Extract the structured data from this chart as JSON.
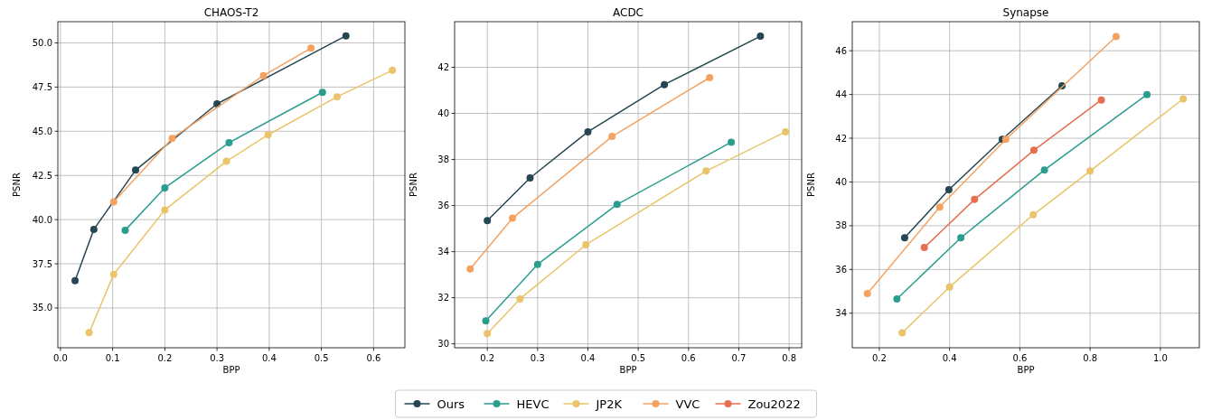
{
  "chart_data": [
    {
      "type": "line",
      "title": "CHAOS-T2",
      "xlabel": "BPP",
      "ylabel": "PSNR",
      "xlim": [
        -0.005,
        0.66
      ],
      "ylim": [
        32.75,
        51.2
      ],
      "xticks": [
        {
          "value": 0,
          "label": "0.0"
        },
        0.1,
        0.2,
        0.3,
        0.4,
        0.5,
        0.6
      ],
      "yticks": [
        {
          "value": 35,
          "label": "35.0"
        },
        37.5,
        {
          "value": 40,
          "label": "40.0"
        },
        42.5,
        {
          "value": 45,
          "label": "45.0"
        },
        47.5,
        {
          "value": 50,
          "label": "50.0"
        }
      ],
      "grid": true,
      "marker": "circle",
      "line_style": "solid",
      "legend": "bottom",
      "series": [
        {
          "name": "Ours",
          "color": "#264653",
          "x": [
            0.028,
            0.064,
            0.144,
            0.3,
            0.547
          ],
          "values": [
            36.55,
            39.45,
            42.8,
            46.55,
            50.4
          ]
        },
        {
          "name": "HEVC",
          "color": "#2a9d8f",
          "x": [
            0.124,
            0.2,
            0.323,
            0.502
          ],
          "values": [
            39.4,
            41.8,
            44.35,
            47.2
          ]
        },
        {
          "name": "JP2K",
          "color": "#e9c46a",
          "x": [
            0.055,
            0.102,
            0.2,
            0.318,
            0.398,
            0.53,
            0.636
          ],
          "values": [
            33.6,
            36.9,
            40.55,
            43.3,
            44.8,
            46.95,
            48.45
          ]
        },
        {
          "name": "VVC",
          "color": "#f4a261",
          "x": [
            0.102,
            0.214,
            0.389,
            0.48
          ],
          "values": [
            41.0,
            44.6,
            48.15,
            49.7
          ]
        }
      ]
    },
    {
      "type": "line",
      "title": "ACDC",
      "xlabel": "BPP",
      "ylabel": "PSNR",
      "xlim": [
        0.135,
        0.825
      ],
      "ylim": [
        29.83,
        43.98
      ],
      "xticks": [
        0.2,
        0.3,
        0.4,
        0.5,
        0.6,
        0.7,
        0.8
      ],
      "yticks": [
        30,
        32,
        34,
        36,
        38,
        40,
        42
      ],
      "grid": true,
      "marker": "circle",
      "line_style": "solid",
      "legend": "bottom",
      "series": [
        {
          "name": "Ours",
          "color": "#264653",
          "x": [
            0.2,
            0.285,
            0.4,
            0.552,
            0.743
          ],
          "values": [
            35.35,
            37.2,
            39.2,
            41.25,
            43.35
          ]
        },
        {
          "name": "HEVC",
          "color": "#2a9d8f",
          "x": [
            0.197,
            0.3,
            0.458,
            0.685
          ],
          "values": [
            31.0,
            33.45,
            36.05,
            38.75
          ]
        },
        {
          "name": "JP2K",
          "color": "#e9c46a",
          "x": [
            0.2,
            0.265,
            0.396,
            0.635,
            0.793
          ],
          "values": [
            30.45,
            31.95,
            34.3,
            37.5,
            39.2
          ]
        },
        {
          "name": "VVC",
          "color": "#f4a261",
          "x": [
            0.166,
            0.25,
            0.448,
            0.642
          ],
          "values": [
            33.25,
            35.45,
            39.0,
            41.55
          ]
        }
      ]
    },
    {
      "type": "line",
      "title": "Synapse",
      "xlabel": "BPP",
      "ylabel": "PSNR",
      "xlim": [
        0.123,
        1.111
      ],
      "ylim": [
        32.42,
        47.33
      ],
      "xticks": [
        0.2,
        0.4,
        0.6,
        0.8,
        {
          "value": 1,
          "label": "1.0"
        }
      ],
      "yticks": [
        34,
        36,
        38,
        40,
        42,
        44,
        46
      ],
      "grid": true,
      "marker": "circle",
      "line_style": "solid",
      "legend": "bottom",
      "series": [
        {
          "name": "Ours",
          "color": "#264653",
          "x": [
            0.272,
            0.398,
            0.55,
            0.72
          ],
          "values": [
            37.45,
            39.65,
            41.95,
            44.4
          ]
        },
        {
          "name": "HEVC",
          "color": "#2a9d8f",
          "x": [
            0.25,
            0.432,
            0.67,
            0.962
          ],
          "values": [
            34.65,
            37.45,
            40.55,
            44.0
          ]
        },
        {
          "name": "JP2K",
          "color": "#e9c46a",
          "x": [
            0.265,
            0.4,
            0.638,
            0.8,
            1.065
          ],
          "values": [
            33.1,
            35.2,
            38.5,
            40.5,
            43.8
          ]
        },
        {
          "name": "VVC",
          "color": "#f4a261",
          "x": [
            0.166,
            0.372,
            0.56,
            0.874
          ],
          "values": [
            34.9,
            38.85,
            41.95,
            46.65
          ]
        },
        {
          "name": "Zou2022",
          "color": "#e76f51",
          "x": [
            0.328,
            0.471,
            0.64,
            0.832
          ],
          "values": [
            37.0,
            39.2,
            41.45,
            43.75
          ]
        }
      ]
    }
  ]
}
